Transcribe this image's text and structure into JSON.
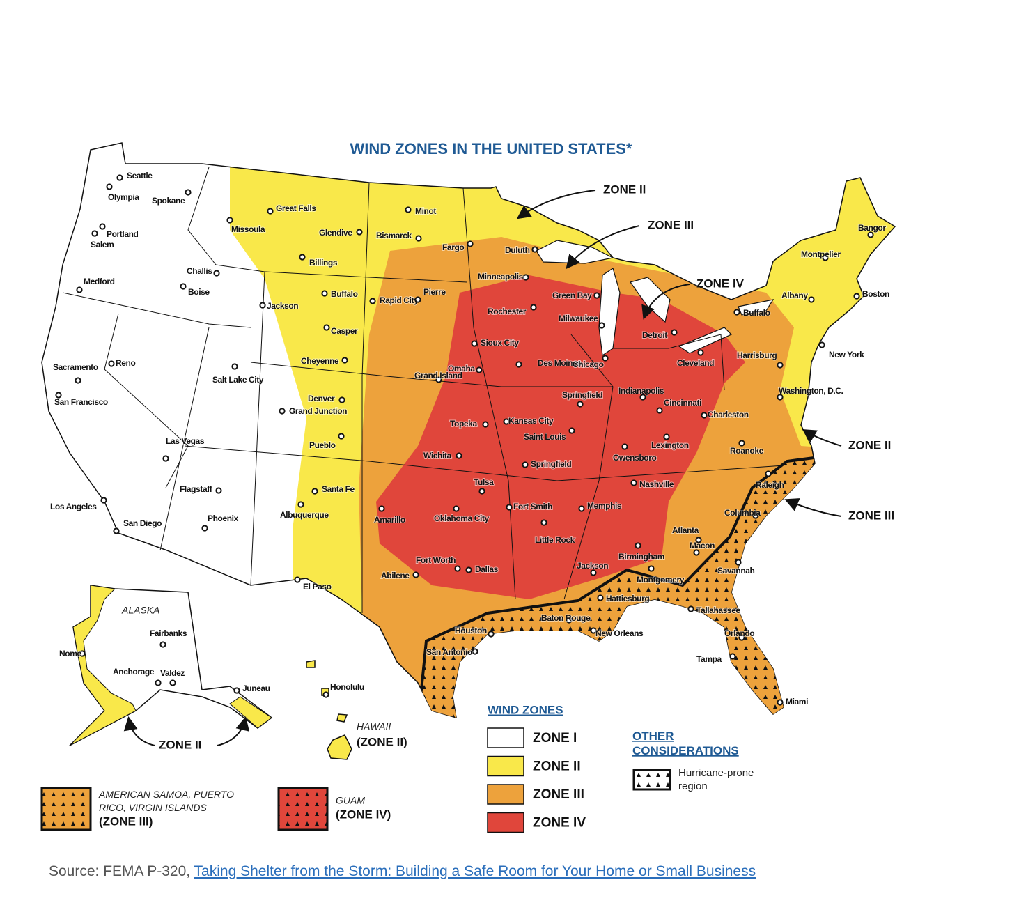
{
  "title": "WIND ZONES IN THE UNITED STATES*",
  "cities": [
    "Seattle",
    "Olympia",
    "Spokane",
    "Portland",
    "Salem",
    "Medford",
    "Challis",
    "Boise",
    "Missoula",
    "Great Falls",
    "Glendive",
    "Billings",
    "Minot",
    "Bismarck",
    "Fargo",
    "Duluth",
    "Minneapolis",
    "Buffalo",
    "Jackson",
    "Rapid City",
    "Pierre",
    "Rochester",
    "Green Bay",
    "Milwaukee",
    "Casper",
    "Sioux City",
    "Detroit",
    "Buffalo",
    "Albany",
    "Boston",
    "Bangor",
    "Montpelier",
    "New York",
    "Cheyenne",
    "Grand Island",
    "Omaha",
    "Des Moines",
    "Chicago",
    "Cleveland",
    "Harrisburg",
    "Sacramento",
    "Reno",
    "Salt Lake City",
    "San Francisco",
    "Denver",
    "Grand Junction",
    "Springfield",
    "Indianapolis",
    "Cincinnati",
    "Washington, D.C.",
    "Charleston",
    "Topeka",
    "Kansas City",
    "Saint Louis",
    "Pueblo",
    "Las Vegas",
    "Lexington",
    "Owensboro",
    "Roanoke",
    "Wichita",
    "Springfield",
    "Nashville",
    "Raleigh",
    "Flagstaff",
    "Santa Fe",
    "Tulsa",
    "Los Angeles",
    "Albuquerque",
    "Memphis",
    "Fort Smith",
    "Amarillo",
    "Oklahoma City",
    "Columbia",
    "San Diego",
    "Phoenix",
    "Little Rock",
    "Atlanta",
    "Macon",
    "Birmingham",
    "Fort Worth",
    "Dallas",
    "Jackson",
    "Abilene",
    "Savannah",
    "Montgomery",
    "El Paso",
    "Hattiesburg",
    "Tallahassee",
    "Baton Rouge",
    "New Orleans",
    "Houston",
    "Orlando",
    "San Antonio",
    "Tampa",
    "Miami",
    "Fairbanks",
    "Nome",
    "Anchorage",
    "Valdez",
    "Juneau",
    "Honolulu"
  ],
  "callouts": [
    "ZONE II",
    "ZONE III",
    "ZONE IV",
    "ZONE II",
    "ZONE III"
  ],
  "alaska": {
    "label": "ALASKA",
    "callout": "ZONE II"
  },
  "hawaii": {
    "label": "HAWAII",
    "zone": "(ZONE II)"
  },
  "territories": [
    {
      "name": "AMERICAN SAMOA, PUERTO RICO, VIRGIN ISLANDS",
      "zone": "(ZONE III)"
    },
    {
      "name": "GUAM",
      "zone": "(ZONE IV)"
    }
  ],
  "legend": {
    "title": "WIND ZONES",
    "items": [
      {
        "label": "ZONE I",
        "color": "#ffffff"
      },
      {
        "label": "ZONE II",
        "color": "#f9e84a"
      },
      {
        "label": "ZONE III",
        "color": "#eda23c"
      },
      {
        "label": "ZONE IV",
        "color": "#e0463b"
      }
    ]
  },
  "other": {
    "title": "OTHER CONSIDERATIONS",
    "items": [
      "Hurricane-prone region"
    ]
  },
  "source": {
    "prefix": "Source: FEMA P-320, ",
    "link": "Taking Shelter from the Storm: Building a Safe Room for Your Home or Small Business"
  }
}
